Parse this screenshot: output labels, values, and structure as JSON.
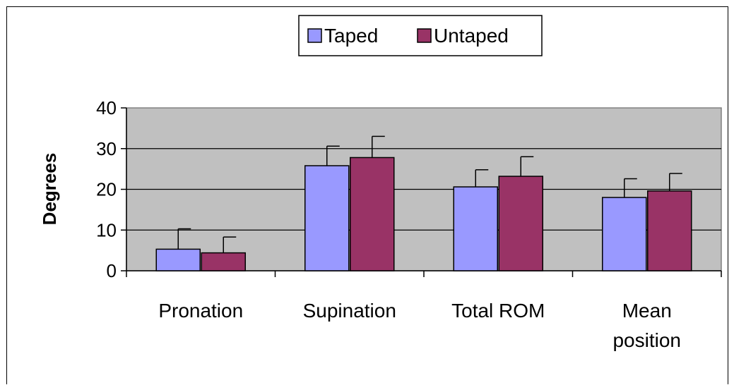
{
  "chart_data": {
    "type": "bar",
    "title": "",
    "xlabel": "",
    "ylabel": "Degrees",
    "ylim": [
      0,
      40
    ],
    "yticks": [
      "0",
      "10",
      "20",
      "30",
      "40"
    ],
    "categories": [
      [
        "Pronation"
      ],
      [
        "Supination"
      ],
      [
        "Total ROM"
      ],
      [
        "Mean",
        "position"
      ]
    ],
    "series": [
      {
        "name": "Taped",
        "color": "#9999ff",
        "values": [
          5.3,
          25.8,
          20.6,
          18.0
        ],
        "errors": [
          5.0,
          4.8,
          4.2,
          4.6
        ]
      },
      {
        "name": "Untaped",
        "color": "#993366",
        "values": [
          4.4,
          27.8,
          23.2,
          19.6
        ],
        "errors": [
          3.9,
          5.2,
          4.8,
          4.3
        ]
      }
    ],
    "grid": true,
    "plot_background": "#c0c0c0",
    "legend_position": "top"
  }
}
